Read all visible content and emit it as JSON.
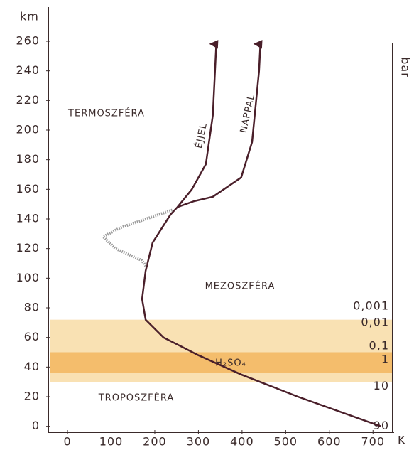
{
  "chart_data": {
    "type": "line",
    "y_label": "km",
    "x_label": "K",
    "y2_label": "bar",
    "xlim": [
      -44,
      724
    ],
    "ylim": [
      -4,
      272
    ],
    "xticks": [
      0,
      100,
      200,
      300,
      400,
      500,
      600,
      700
    ],
    "yticks": [
      0,
      20,
      40,
      60,
      80,
      100,
      120,
      140,
      160,
      180,
      200,
      220,
      240,
      260
    ],
    "series": [
      {
        "name": "ÉJJEL",
        "color": "#4a1f2a",
        "x": [
          718,
          528,
          398,
          300,
          220,
          179,
          171,
          179,
          195,
          236,
          252,
          285,
          317,
          333,
          341
        ],
        "values": [
          0,
          20,
          35,
          48,
          60,
          72,
          86,
          105,
          124,
          143,
          148,
          160,
          177,
          210,
          258
        ]
      },
      {
        "name": "NAPPAL",
        "color": "#4a1f2a",
        "x": [
          252,
          290,
          333,
          398,
          423,
          439,
          442
        ],
        "values": [
          148,
          152,
          155,
          168,
          192,
          240,
          258
        ]
      },
      {
        "color": "#9a9a9a",
        "x": [
          240,
          190,
          120,
          82,
          110,
          170,
          180
        ],
        "values": [
          146,
          141,
          134,
          128,
          120,
          112,
          108
        ]
      }
    ],
    "pressure_labels": [
      {
        "text": "0,001",
        "km": 81
      },
      {
        "text": "0,01",
        "km": 70
      },
      {
        "text": "0,1",
        "km": 54
      },
      {
        "text": "1",
        "km": 45
      },
      {
        "text": "10",
        "km": 27
      },
      {
        "text": "90",
        "km": 0
      }
    ],
    "layers": [
      {
        "ylim": [
          30,
          72
        ],
        "color": "#f7d9a0"
      },
      {
        "label": "H₂SO₄",
        "ylim": [
          36,
          50
        ],
        "color": "#f2b45a"
      }
    ],
    "annotations": [
      "TERMOSZFÉRA",
      "MEZOSZFÉRA",
      "TROPOSZFÉRA"
    ]
  }
}
